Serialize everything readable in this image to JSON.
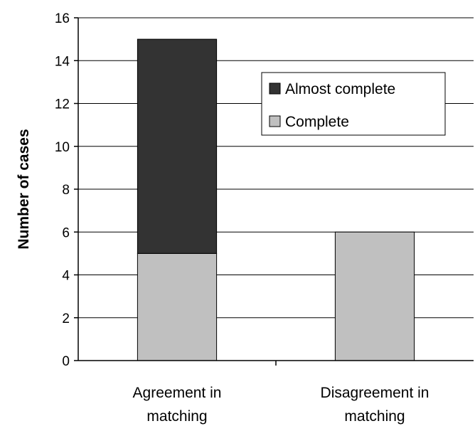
{
  "chart_data": {
    "type": "bar",
    "stacked": true,
    "categories": [
      [
        "Agreement in",
        "matching"
      ],
      [
        "Disagreement in",
        "matching"
      ]
    ],
    "series": [
      {
        "name": "Complete",
        "values": [
          5,
          6
        ],
        "color": "#c0c0c0"
      },
      {
        "name": "Almost complete",
        "values": [
          10,
          0
        ],
        "color": "#333333"
      }
    ],
    "ylabel": "Number of cases",
    "xlabel": "",
    "ylim": [
      0,
      16
    ],
    "yticks": [
      0,
      2,
      4,
      6,
      8,
      10,
      12,
      14,
      16
    ],
    "grid": true,
    "legend": {
      "placement": "top-right",
      "entries": [
        "Almost complete",
        "Complete"
      ]
    }
  }
}
